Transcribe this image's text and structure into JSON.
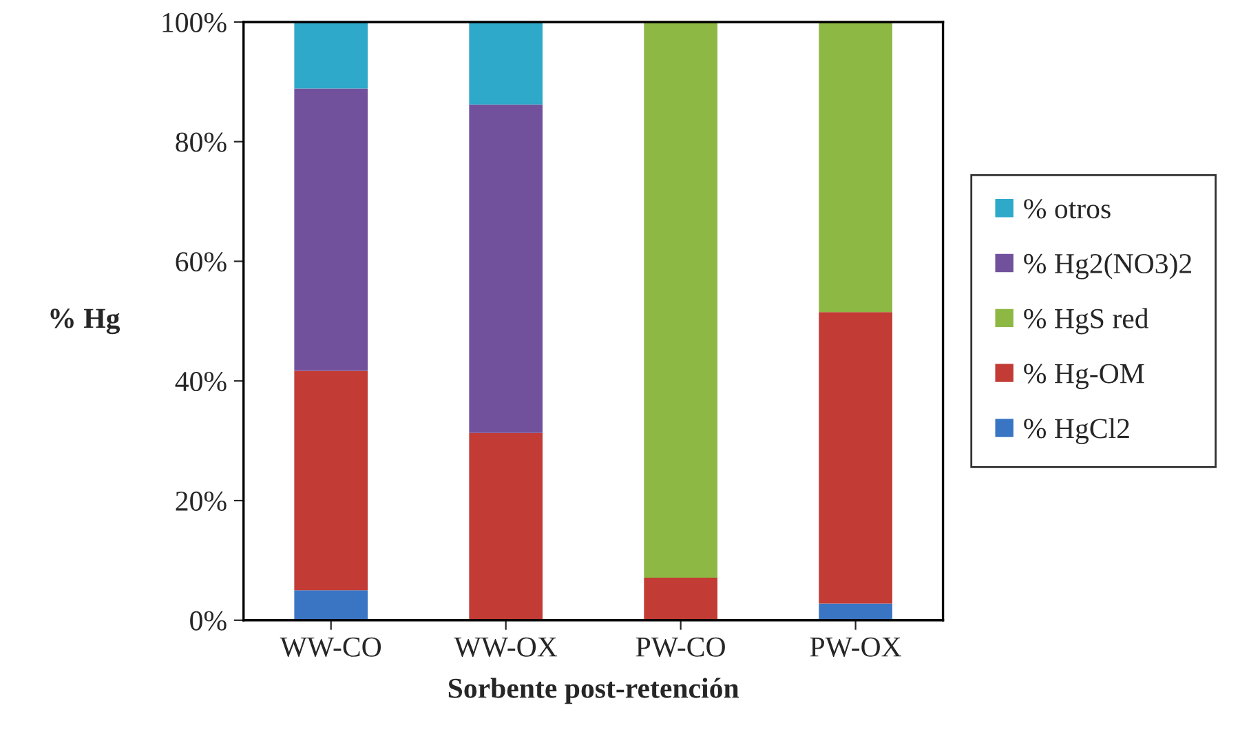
{
  "chart_data": {
    "type": "bar",
    "stacked": true,
    "xlabel": "Sorbente post-retención",
    "ylabel": "% Hg",
    "categories": [
      "WW-CO",
      "WW-OX",
      "PW-CO",
      "PW-OX"
    ],
    "series": [
      {
        "name": "% HgCl2",
        "color": "#3a75c4",
        "values": [
          5.0,
          0,
          0,
          2.8
        ]
      },
      {
        "name": "% Hg-OM",
        "color": "#c23b35",
        "values": [
          36.7,
          31.3,
          7.1,
          48.7
        ]
      },
      {
        "name": "% HgS red",
        "color": "#8db843",
        "values": [
          0,
          0,
          92.9,
          48.5
        ]
      },
      {
        "name": "% Hg2(NO3)2",
        "color": "#71519c",
        "values": [
          47.2,
          54.9,
          0,
          0
        ]
      },
      {
        "name": "% otros",
        "color": "#2ea9c9",
        "values": [
          11.1,
          13.8,
          0,
          0
        ]
      }
    ],
    "ylim": [
      0,
      100
    ],
    "yticks": [
      {
        "value": 0,
        "label": "0%"
      },
      {
        "value": 20,
        "label": "20%"
      },
      {
        "value": 40,
        "label": "40%"
      },
      {
        "value": 60,
        "label": "60%"
      },
      {
        "value": 80,
        "label": "80%"
      },
      {
        "value": 100,
        "label": "100%"
      }
    ],
    "legend": "right",
    "grid": false
  }
}
